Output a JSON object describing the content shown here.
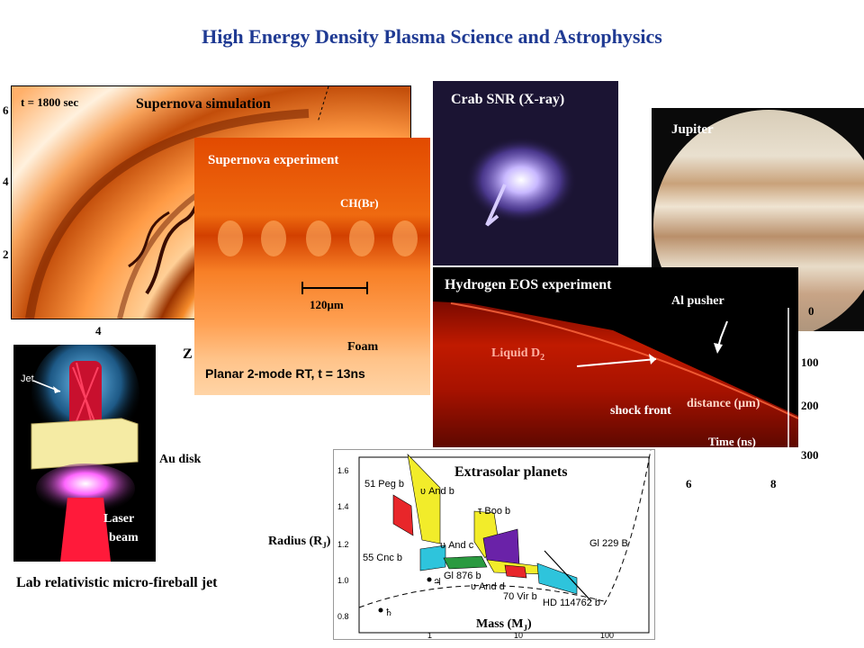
{
  "title": "High Energy Density Plasma Science and Astrophysics",
  "supernova_sim": {
    "time_label": "t = 1800 sec",
    "label": "Supernova simulation",
    "y_ticks": [
      "6",
      "4",
      "2"
    ],
    "x_tick": "4",
    "z_fragment": "Z"
  },
  "supernova_exp": {
    "label": "Supernova experiment",
    "material_top": "CH(Br)",
    "scale": "120μm",
    "material_bottom": "Foam",
    "caption": "Planar 2-mode RT, t = 13ns"
  },
  "crab": {
    "label": "Crab SNR (X-ray)"
  },
  "jupiter": {
    "label": "Jupiter"
  },
  "hydrogen_eos": {
    "label": "Hydrogen EOS experiment",
    "pusher": "Al pusher",
    "liquid": "Liquid D",
    "liquid_sub": "2",
    "shock": "shock front",
    "distance": "distance (μm)",
    "time": "Time (ns)",
    "y_ticks": [
      "0",
      "100",
      "200",
      "300"
    ],
    "x_ticks": [
      "6",
      "8"
    ]
  },
  "jet": {
    "jet_label": "Jet",
    "disk_label": "Au disk",
    "laser_line1": "Laser",
    "laser_line2": "beam",
    "caption": "Lab relativistic micro-fireball jet"
  },
  "planets": {
    "title": "Extrasolar planets",
    "ylabel": "Radius (R",
    "ylabel_sub": "J",
    "ylabel_end": ")",
    "xlabel": "Mass (M",
    "xlabel_sub": "J",
    "xlabel_end": ")",
    "y_ticks": [
      "1.6",
      "1.4",
      "1.2",
      "1.0",
      "0.8"
    ],
    "x_ticks": [
      "1",
      "10",
      "100"
    ],
    "labels": {
      "peg": "51 Peg b",
      "and_b": "υ And b",
      "boo": "τ Boo b",
      "and_c": "υ And c",
      "cnc": "55 Cnc b",
      "gl876": "Gl 876 b",
      "and_d": "υ And d",
      "vir": "70 Vir b",
      "hd": "HD 114762 b",
      "gl229": "Gl 229 B",
      "jupiter_sym": "♃",
      "saturn_sym": "♄"
    }
  }
}
